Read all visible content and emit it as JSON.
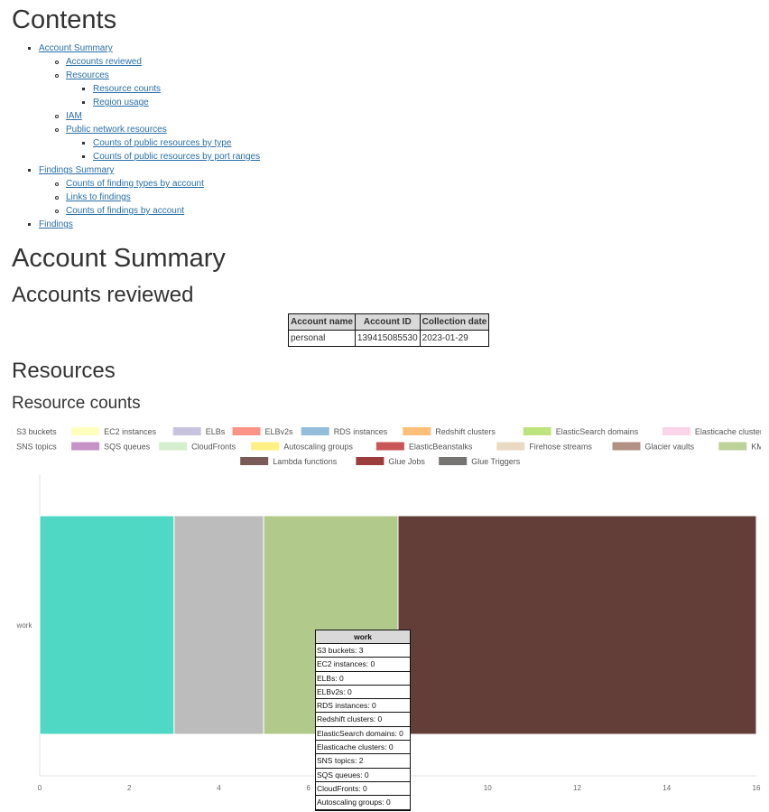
{
  "headings": {
    "contents": "Contents",
    "account_summary": "Account Summary",
    "accounts_reviewed": "Accounts reviewed",
    "resources": "Resources",
    "resource_counts": "Resource counts"
  },
  "toc": [
    {
      "level": 1,
      "label": "Account Summary"
    },
    {
      "level": 2,
      "label": "Accounts reviewed"
    },
    {
      "level": 2,
      "label": "Resources"
    },
    {
      "level": 3,
      "label": "Resource counts"
    },
    {
      "level": 3,
      "label": "Region usage"
    },
    {
      "level": 2,
      "label": "IAM"
    },
    {
      "level": 2,
      "label": "Public network resources"
    },
    {
      "level": 3,
      "label": "Counts of public resources by type"
    },
    {
      "level": 3,
      "label": "Counts of public resources by port ranges"
    },
    {
      "level": 1,
      "label": "Findings Summary"
    },
    {
      "level": 2,
      "label": "Counts of finding types by account"
    },
    {
      "level": 2,
      "label": "Links to findings"
    },
    {
      "level": 2,
      "label": "Counts of findings by account"
    },
    {
      "level": 1,
      "label": "Findings"
    }
  ],
  "accounts_table": {
    "headers": [
      "Account name",
      "Account ID",
      "Collection date"
    ],
    "rows": [
      [
        "personal",
        "139415085530",
        "2023-01-29"
      ]
    ]
  },
  "chart_data": {
    "type": "bar",
    "orientation": "horizontal",
    "stacked": true,
    "categories": [
      "work"
    ],
    "xlim": [
      0,
      16
    ],
    "xticks": [
      0,
      2,
      4,
      6,
      8,
      10,
      12,
      14,
      16
    ],
    "legend_position": "top",
    "series": [
      {
        "name": "S3 buckets",
        "values": [
          3
        ],
        "color": "#4fd9c4"
      },
      {
        "name": "EC2 instances",
        "values": [
          0
        ],
        "color": "#ffffb3"
      },
      {
        "name": "ELBs",
        "values": [
          0
        ],
        "color": "#bebada"
      },
      {
        "name": "ELBv2s",
        "values": [
          0
        ],
        "color": "#fb8072"
      },
      {
        "name": "RDS instances",
        "values": [
          0
        ],
        "color": "#80b1d3"
      },
      {
        "name": "Redshift clusters",
        "values": [
          0
        ],
        "color": "#fdb462"
      },
      {
        "name": "ElasticSearch domains",
        "values": [
          0
        ],
        "color": "#b3de69"
      },
      {
        "name": "Elasticache clusters",
        "values": [
          0
        ],
        "color": "#fccde5"
      },
      {
        "name": "SNS topics",
        "values": [
          2
        ],
        "color": "#bcbcbc"
      },
      {
        "name": "SQS queues",
        "values": [
          0
        ],
        "color": "#bc80bd"
      },
      {
        "name": "CloudFronts",
        "values": [
          0
        ],
        "color": "#ccebc5"
      },
      {
        "name": "Autoscaling groups",
        "values": [
          0
        ],
        "color": "#ffed6f"
      },
      {
        "name": "ElasticBeanstalks",
        "values": [
          0
        ],
        "color": "#c0393b"
      },
      {
        "name": "Firehose streams",
        "values": [
          0
        ],
        "color": "#e8d3b8"
      },
      {
        "name": "Glacier vaults",
        "values": [
          0
        ],
        "color": "#a57e6e"
      },
      {
        "name": "KMS keys",
        "values": [
          3
        ],
        "color": "#b1c98a"
      },
      {
        "name": "Lambda functions",
        "values": [
          8
        ],
        "color": "#633e39"
      },
      {
        "name": "Glue Jobs",
        "values": [
          0
        ],
        "color": "#8b1a1a"
      },
      {
        "name": "Glue Triggers",
        "values": [
          0
        ],
        "color": "#5e5a5a"
      }
    ]
  },
  "tooltip": {
    "title": "work",
    "rows": [
      "S3 buckets: 3",
      "EC2 instances: 0",
      "ELBs: 0",
      "ELBv2s: 0",
      "RDS instances: 0",
      "Redshift clusters: 0",
      "ElasticSearch domains: 0",
      "Elasticache clusters: 0",
      "SNS topics: 2",
      "SQS queues: 0",
      "CloudFronts: 0",
      "Autoscaling groups: 0"
    ]
  }
}
